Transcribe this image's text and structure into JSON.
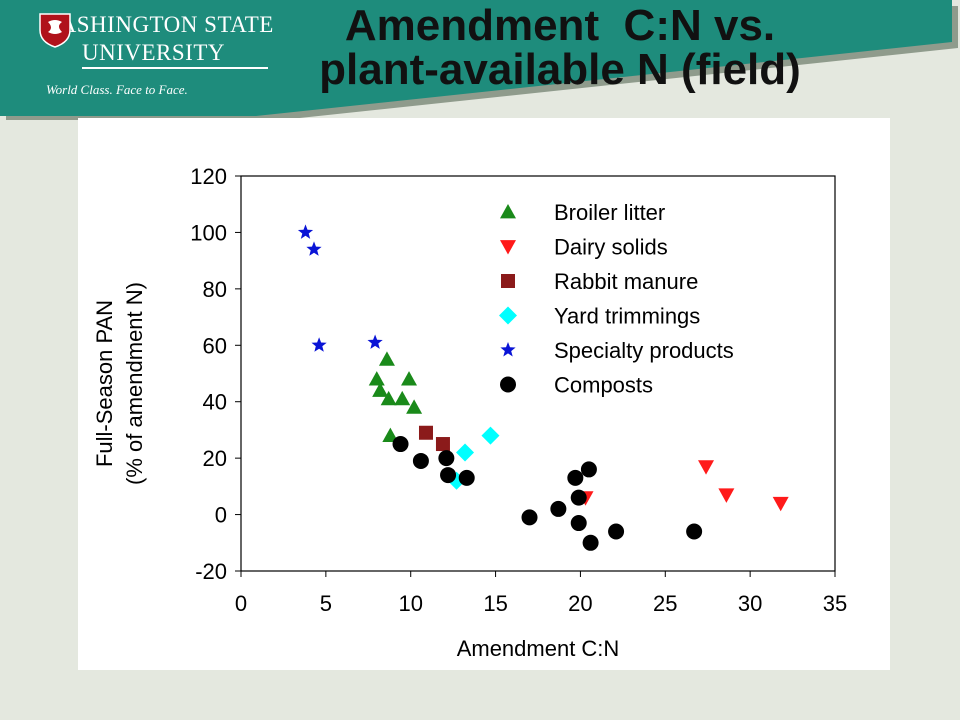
{
  "header": {
    "university_line1": "WASHINGTON STATE",
    "university_line2": "UNIVERSITY",
    "tagline": "World Class. Face to Face.",
    "title_line1": "Amendment  C:N vs.",
    "title_line2": "plant-available N (field)",
    "brand_color": "#1e8c7c"
  },
  "chart_data": {
    "type": "scatter",
    "xlabel": "Amendment C:N",
    "ylabel_line1": "Full-Season PAN",
    "ylabel_line2": "(% of amendment N)",
    "xlim": [
      0,
      35
    ],
    "ylim": [
      -20,
      120
    ],
    "x_ticks": [
      0,
      5,
      10,
      15,
      20,
      25,
      30,
      35
    ],
    "y_ticks": [
      -20,
      0,
      20,
      40,
      60,
      80,
      100,
      120
    ],
    "grid": false,
    "legend_position": "top-right inside plot",
    "series": [
      {
        "name": "Broiler litter",
        "marker": "triangle-up",
        "color": "#1a8a1a",
        "points": [
          [
            8.6,
            55
          ],
          [
            8.0,
            48
          ],
          [
            9.9,
            48
          ],
          [
            8.2,
            44
          ],
          [
            8.7,
            41
          ],
          [
            9.5,
            41
          ],
          [
            10.2,
            38
          ],
          [
            8.8,
            28
          ]
        ]
      },
      {
        "name": "Dairy solids",
        "marker": "triangle-down",
        "color": "#ff1a1a",
        "points": [
          [
            27.4,
            17
          ],
          [
            28.6,
            7
          ],
          [
            31.8,
            4
          ],
          [
            20.3,
            6
          ]
        ]
      },
      {
        "name": "Rabbit manure",
        "marker": "square",
        "color": "#8b1a1a",
        "points": [
          [
            10.9,
            29
          ],
          [
            11.9,
            25
          ]
        ]
      },
      {
        "name": "Yard trimmings",
        "marker": "diamond",
        "color": "#00ffff",
        "points": [
          [
            14.7,
            28
          ],
          [
            13.2,
            22
          ],
          [
            12.7,
            12
          ]
        ]
      },
      {
        "name": "Specialty products",
        "marker": "star",
        "color": "#0a14d6",
        "points": [
          [
            3.8,
            100
          ],
          [
            4.3,
            94
          ],
          [
            4.6,
            60
          ],
          [
            7.9,
            61
          ]
        ]
      },
      {
        "name": "Composts",
        "marker": "circle",
        "color": "#000000",
        "points": [
          [
            9.4,
            25
          ],
          [
            10.6,
            19
          ],
          [
            12.1,
            20
          ],
          [
            12.2,
            14
          ],
          [
            13.3,
            13
          ],
          [
            17.0,
            -1
          ],
          [
            18.7,
            2
          ],
          [
            19.7,
            13
          ],
          [
            20.5,
            16
          ],
          [
            19.9,
            6
          ],
          [
            19.9,
            -3
          ],
          [
            20.6,
            -10
          ],
          [
            22.1,
            -6
          ],
          [
            26.7,
            -6
          ]
        ]
      }
    ]
  }
}
